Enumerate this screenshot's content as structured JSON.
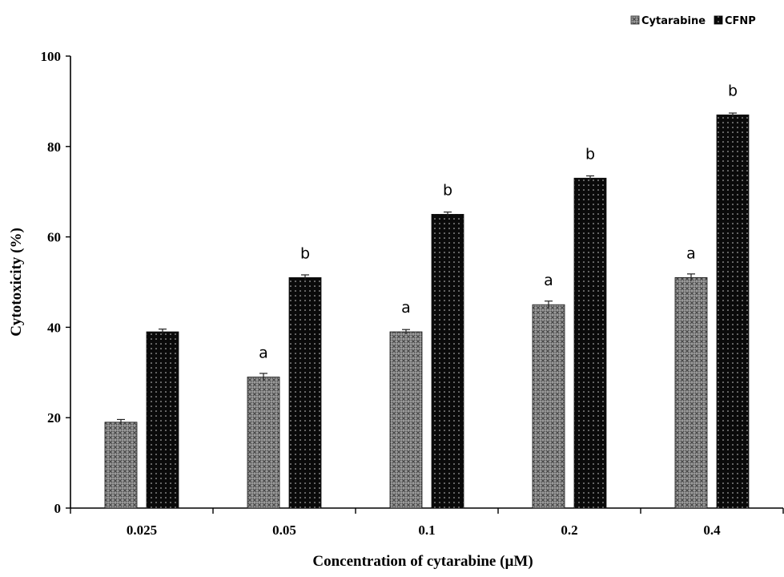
{
  "chart_data": {
    "type": "bar",
    "title": "",
    "xlabel": "Concentration of cytarabine (µM)",
    "ylabel": "Cytotoxicity (%)",
    "ylim": [
      0,
      100
    ],
    "yticks": [
      "0",
      "20",
      "40",
      "60",
      "80",
      "100"
    ],
    "categories": [
      "0.025",
      "0.05",
      "0.1",
      "0.2",
      "0.4"
    ],
    "legend_position": "top-right",
    "grid": false,
    "series": [
      {
        "name": "Cytarabine",
        "values": [
          19,
          29,
          39,
          45,
          51
        ],
        "errors": [
          0.6,
          0.8,
          0.5,
          0.8,
          0.8
        ],
        "sig_labels": [
          "",
          "a",
          "a",
          "a",
          "a"
        ],
        "pattern": "crosshatch-gray"
      },
      {
        "name": "CFNP",
        "values": [
          39,
          51,
          65,
          73,
          87
        ],
        "errors": [
          0.6,
          0.6,
          0.5,
          0.5,
          0.4
        ],
        "sig_labels": [
          "",
          "b",
          "b",
          "b",
          "b"
        ],
        "pattern": "dotted-black"
      }
    ],
    "colors": {
      "axis": "#000000",
      "bar_outline": "#111111"
    }
  }
}
